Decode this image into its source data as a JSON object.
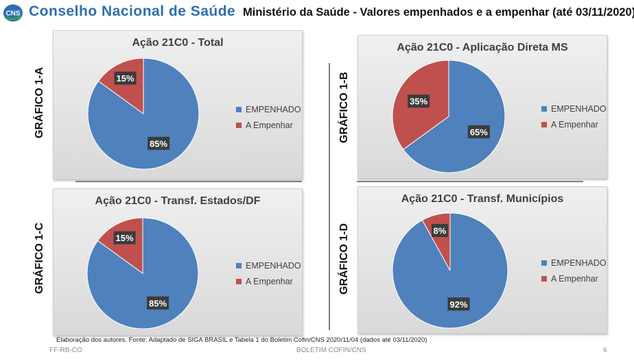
{
  "header": {
    "logo_text": "CNS",
    "org_name": "Conselho Nacional de Saúde",
    "title": "Ministério da Saúde - Valores empenhados e a empenhar (até 03/11/2020)"
  },
  "chart_data": [
    {
      "id": "1-A",
      "type": "pie",
      "side_label": "GRÁFICO 1-A",
      "title": "Ação 21C0 - Total",
      "categories": [
        "EMPENHADO",
        "A Empenhar"
      ],
      "values": [
        85,
        15
      ],
      "value_labels": [
        "85%",
        "15%"
      ],
      "colors": [
        "#4f81bd",
        "#c0504d"
      ],
      "legend": "right"
    },
    {
      "id": "1-B",
      "type": "pie",
      "side_label": "GRÁFICO 1-B",
      "title": "Ação 21C0 - Aplicação Direta MS",
      "categories": [
        "EMPENHADO",
        "A Empenhar"
      ],
      "values": [
        65,
        35
      ],
      "value_labels": [
        "65%",
        "35%"
      ],
      "colors": [
        "#4f81bd",
        "#c0504d"
      ],
      "legend": "right"
    },
    {
      "id": "1-C",
      "type": "pie",
      "side_label": "GRÁFICO 1-C",
      "title": "Ação 21C0 - Transf. Estados/DF",
      "categories": [
        "EMPENHADO",
        "A Empenhar"
      ],
      "values": [
        85,
        15
      ],
      "value_labels": [
        "85%",
        "15%"
      ],
      "colors": [
        "#4f81bd",
        "#c0504d"
      ],
      "legend": "right"
    },
    {
      "id": "1-D",
      "type": "pie",
      "side_label": "GRÁFICO 1-D",
      "title": "Ação 21C0 - Transf. Municípios",
      "categories": [
        "EMPENHADO",
        "A Empenhar"
      ],
      "values": [
        92,
        8
      ],
      "value_labels": [
        "92%",
        "8%"
      ],
      "colors": [
        "#4f81bd",
        "#c0504d"
      ],
      "legend": "right"
    }
  ],
  "source_note": "Elaboração dos autores. Fonte: Adaptado de SIGA BRASIL e Tabela 1 do Boletim Cofin/CNS 2020/11/04 (dados até 03/11/2020)",
  "footer": {
    "left": "FF-RB-CO",
    "center": "BOLETIM COFIN/CNS",
    "page": "6"
  }
}
